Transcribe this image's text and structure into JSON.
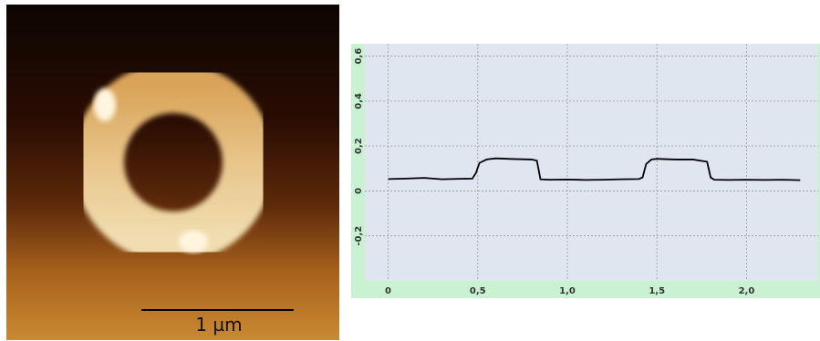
{
  "image": {
    "scale_label": "1 µm"
  },
  "chart_data": {
    "type": "line",
    "x": [
      0,
      0.1,
      0.2,
      0.3,
      0.4,
      0.47,
      0.49,
      0.51,
      0.55,
      0.6,
      0.7,
      0.8,
      0.83,
      0.85,
      0.9,
      1.0,
      1.1,
      1.2,
      1.3,
      1.4,
      1.42,
      1.44,
      1.47,
      1.5,
      1.6,
      1.7,
      1.78,
      1.8,
      1.82,
      1.9,
      2.0,
      2.1,
      2.2,
      2.3
    ],
    "series": [
      {
        "color": "#000000",
        "values": [
          0.053,
          0.055,
          0.058,
          0.052,
          0.054,
          0.055,
          0.08,
          0.125,
          0.14,
          0.145,
          0.142,
          0.14,
          0.135,
          0.052,
          0.05,
          0.051,
          0.049,
          0.05,
          0.052,
          0.053,
          0.06,
          0.12,
          0.14,
          0.143,
          0.14,
          0.14,
          0.13,
          0.06,
          0.05,
          0.049,
          0.05,
          0.049,
          0.05,
          0.048
        ]
      }
    ],
    "xlim": [
      -0.13,
      2.4
    ],
    "ylim": [
      -0.4,
      0.655
    ],
    "xticks": [
      0,
      {
        "value": 0.5,
        "label": "0,5"
      },
      {
        "value": 1.0,
        "label": "1,0"
      },
      {
        "value": 1.5,
        "label": "1,5"
      },
      {
        "value": 2.0,
        "label": "2,0"
      }
    ],
    "yticks": [
      {
        "value": -0.2,
        "label": "-0,2"
      },
      0,
      {
        "value": 0.2,
        "label": "0,2"
      },
      {
        "value": 0.4,
        "label": "0,4"
      },
      {
        "value": 0.6,
        "label": "0,6"
      }
    ],
    "grid": true
  }
}
